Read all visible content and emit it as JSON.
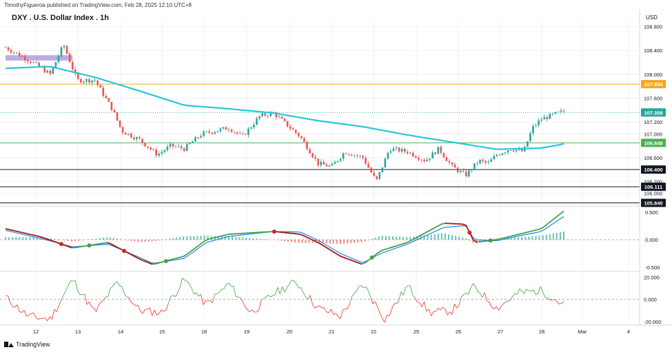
{
  "header": {
    "publisher": "TimothyFigueroa published on TradingView.com, Feb 28, 2025 12:10 UTC+8",
    "title": "DXY . U.S. Dollar Index . 1h",
    "currency": "USD",
    "brand": "TradingView"
  },
  "chart_data": [
    {
      "type": "candlestick",
      "title": "DXY . U.S. Dollar Index . 1h",
      "ylabel": "USD",
      "ylim": [
        105.8,
        108.9
      ],
      "y_ticks": [
        "108.800",
        "108.400",
        "108.000",
        "107.600",
        "107.200",
        "107.000",
        "106.600",
        "106.200",
        "106.000"
      ],
      "x_ticks": [
        "12",
        "13",
        "14",
        "15",
        "18",
        "19",
        "20",
        "21",
        "22",
        "25",
        "26",
        "27",
        "28",
        "Mar",
        "4"
      ],
      "ma_series": {
        "name": "",
        "color": "#26c6da",
        "x": [
          0,
          1,
          2,
          3,
          4,
          5,
          6,
          7,
          8,
          9,
          10,
          11,
          12,
          12.5
        ],
        "values": [
          108.1,
          108.13,
          107.95,
          107.72,
          107.48,
          107.42,
          107.35,
          107.22,
          107.12,
          106.98,
          106.86,
          106.74,
          106.76,
          106.83
        ]
      },
      "close_path": {
        "x": [
          0,
          0.6,
          1,
          1.3,
          1.6,
          2,
          2.4,
          2.6,
          3,
          3.4,
          3.7,
          4,
          4.4,
          4.7,
          5,
          5.3,
          5.7,
          6,
          6.3,
          6.6,
          7,
          7.3,
          7.6,
          8,
          8.3,
          8.6,
          9,
          9.4,
          9.7,
          10,
          10.3,
          10.6,
          10.8,
          11,
          11.3,
          11.6,
          11.8,
          12,
          12.2,
          12.5
        ],
        "values": [
          108.45,
          108.2,
          108.0,
          108.5,
          107.9,
          107.9,
          107.4,
          107.05,
          106.9,
          106.65,
          106.8,
          106.75,
          107.0,
          107.05,
          107.1,
          106.95,
          107.3,
          107.35,
          107.15,
          106.95,
          106.5,
          106.45,
          106.7,
          106.6,
          106.2,
          106.75,
          106.7,
          106.55,
          106.75,
          106.45,
          106.3,
          106.55,
          106.5,
          106.65,
          106.75,
          106.7,
          107.1,
          107.25,
          107.3,
          107.38
        ]
      },
      "horizontal_lines": [
        {
          "value": 107.834,
          "label": "107.834",
          "color": "#f5a623"
        },
        {
          "value": 107.358,
          "label": "107.358",
          "color": "#26a69a"
        },
        {
          "value": 106.848,
          "label": "106.848",
          "color": "#4caf50"
        },
        {
          "value": 106.4,
          "label": "106.400",
          "color": "#131722"
        },
        {
          "value": 106.111,
          "label": "106.111",
          "color": "#131722"
        },
        {
          "value": 105.84,
          "label": "105.840",
          "color": "#131722"
        }
      ],
      "highlight_zone": {
        "x_range": [
          0,
          1.5
        ],
        "y_range": [
          108.23,
          108.32
        ],
        "color": "#b39ddb"
      }
    },
    {
      "type": "line",
      "ylim": [
        -0.55,
        0.6
      ],
      "y_ticks": [
        "0.500",
        "0.000",
        "-0.500"
      ],
      "series": [
        {
          "name": "",
          "color": "#43a047",
          "x": [
            0,
            0.8,
            1.5,
            2.3,
            3,
            3.3,
            4,
            4.5,
            5,
            6,
            6.6,
            7,
            7.5,
            8,
            8.4,
            9,
            9.8,
            10.3,
            10.5,
            11,
            11.5,
            12,
            12.5
          ],
          "values": [
            0.2,
            0.05,
            -0.15,
            -0.05,
            -0.35,
            -0.45,
            -0.3,
            0.0,
            0.1,
            0.15,
            0.1,
            -0.05,
            -0.3,
            -0.45,
            -0.2,
            -0.05,
            0.3,
            0.28,
            -0.05,
            0.0,
            0.1,
            0.2,
            0.52
          ]
        },
        {
          "name": "",
          "color": "#1e88e5",
          "x": [
            0,
            0.8,
            1.5,
            2.3,
            3,
            3.3,
            4,
            4.5,
            5,
            6,
            6.6,
            7,
            7.5,
            8,
            8.4,
            9,
            9.8,
            10.3,
            10.5,
            11,
            11.5,
            12,
            12.5
          ],
          "values": [
            0.17,
            0.02,
            -0.13,
            -0.08,
            -0.32,
            -0.43,
            -0.34,
            -0.05,
            0.06,
            0.15,
            0.14,
            -0.01,
            -0.25,
            -0.42,
            -0.25,
            -0.08,
            0.22,
            0.26,
            0.0,
            -0.02,
            0.07,
            0.15,
            0.42
          ]
        }
      ],
      "zero_line": 0
    },
    {
      "type": "line",
      "ylim": [
        -22,
        24
      ],
      "y_ticks": [
        "20.000",
        "0.000",
        "-20.000"
      ],
      "series": [
        {
          "name": "",
          "up_color": "#4caf50",
          "down_color": "#f44336",
          "x": [
            0,
            0.5,
            1,
            1.5,
            2,
            2.5,
            3,
            3.5,
            4,
            4.5,
            5,
            5.5,
            6,
            6.5,
            7,
            7.5,
            8,
            8.5,
            9,
            9.5,
            10,
            10.5,
            11,
            11.5,
            12,
            12.5
          ],
          "values": [
            2,
            -15,
            -18,
            18,
            -12,
            15,
            -10,
            -12,
            18,
            -5,
            14,
            -12,
            5,
            16,
            -8,
            -15,
            14,
            -18,
            12,
            -12,
            -10,
            12,
            -8,
            6,
            8,
            -5
          ]
        }
      ],
      "zero_line": 0
    }
  ]
}
